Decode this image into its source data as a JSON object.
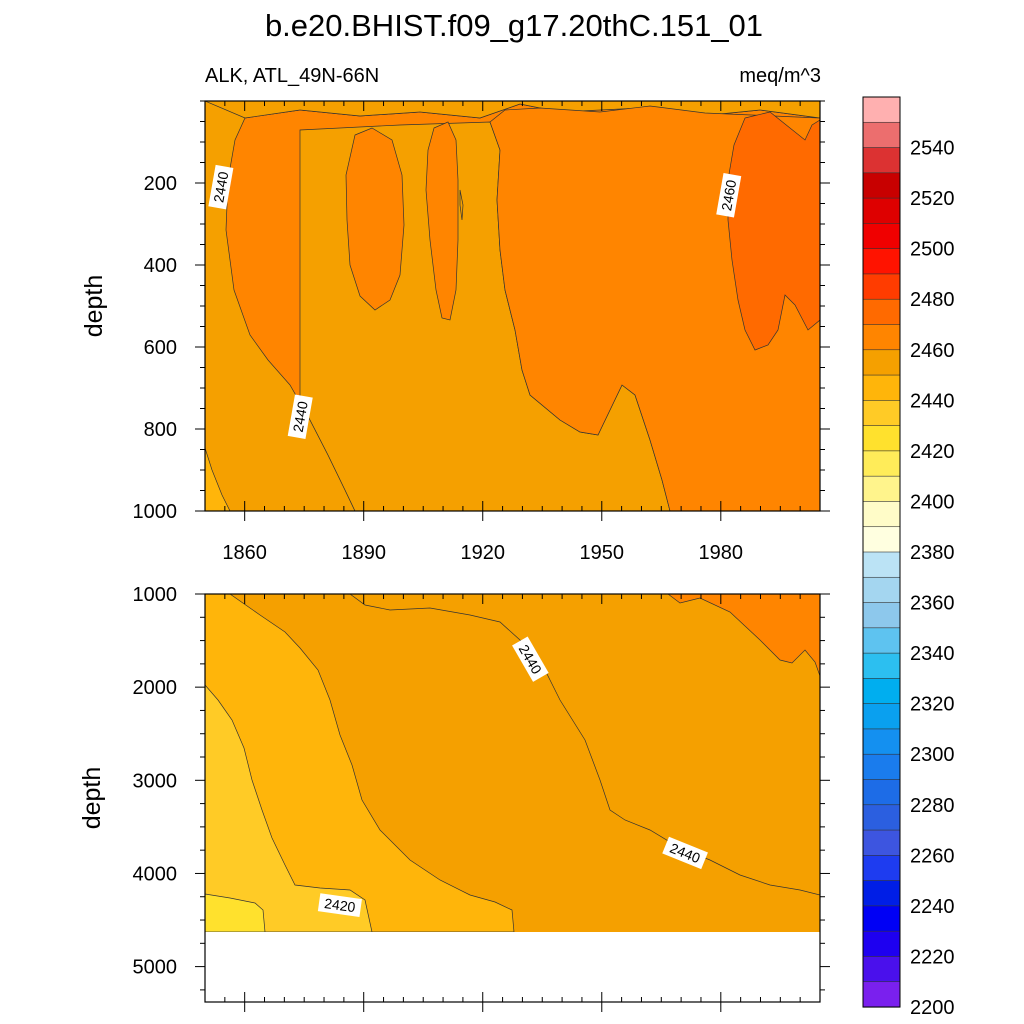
{
  "figure": {
    "title": "b.e20.BHIST.f09_g17.20thC.151_01",
    "subtitle_left": "ALK, ATL_49N-66N",
    "subtitle_right": "meq/m^3"
  },
  "chart_data": [
    {
      "type": "heatmap",
      "name": "upper-panel",
      "xlabel": "",
      "ylabel": "depth",
      "xlim": [
        1850,
        2005
      ],
      "ylim": [
        1000,
        0
      ],
      "xticks": [
        1860,
        1890,
        1920,
        1950,
        1980
      ],
      "xtick_labels": [
        "1860",
        "1890",
        "1920",
        "1950",
        "1980"
      ],
      "yticks": [
        200,
        400,
        600,
        800,
        1000
      ],
      "ytick_labels": [
        "200",
        "400",
        "600",
        "800",
        "1000"
      ],
      "contour_labels": [
        {
          "text": "2440",
          "x": 1854,
          "y": 210
        },
        {
          "text": "2440",
          "x": 1874,
          "y": 770
        },
        {
          "text": "2460",
          "x": 1982,
          "y": 230
        }
      ],
      "filled_regions_min_value": [
        {
          "level": 2440,
          "color": "#f5a000"
        },
        {
          "level": 2450,
          "color": "#ff8500"
        },
        {
          "level": 2460,
          "color": "#ff6a00"
        }
      ]
    },
    {
      "type": "heatmap",
      "name": "lower-panel",
      "xlabel": "",
      "ylabel": "depth",
      "xlim": [
        1850,
        2005
      ],
      "ylim": [
        5380,
        1000
      ],
      "xticks": [
        1860,
        1890,
        1920,
        1950,
        1980
      ],
      "yticks": [
        1000,
        2000,
        3000,
        4000,
        5000
      ],
      "ytick_labels": [
        "1000",
        "2000",
        "3000",
        "4000",
        "5000"
      ],
      "data_bottom_depth": 4620,
      "contour_labels": [
        {
          "text": "2440",
          "x": 1932,
          "y": 1700
        },
        {
          "text": "2440",
          "x": 1971,
          "y": 3780
        },
        {
          "text": "2420",
          "x": 1884,
          "y": 4340
        }
      ]
    }
  ],
  "colorbar": {
    "labels": [
      "2540",
      "2520",
      "2500",
      "2480",
      "2460",
      "2440",
      "2420",
      "2400",
      "2380",
      "2360",
      "2340",
      "2320",
      "2300",
      "2280",
      "2260",
      "2240",
      "2220",
      "2200"
    ],
    "colors": [
      "#ffb0b0",
      "#ec6e6e",
      "#dc3232",
      "#c80000",
      "#de0000",
      "#f00000",
      "#ff1300",
      "#ff3c00",
      "#ff6a00",
      "#ff8500",
      "#f5a000",
      "#ffb50a",
      "#ffcb26",
      "#ffe12d",
      "#ffec59",
      "#fff48c",
      "#fffcc8",
      "#ffffe0",
      "#bbe3f5",
      "#a4d6f0",
      "#8dc8ec",
      "#5ec3f0",
      "#2cbff0",
      "#00aeef",
      "#0aa0ef",
      "#1490f0",
      "#1a7ced",
      "#1d6ce7",
      "#2b5fe0",
      "#3d55e0",
      "#1e3cf0",
      "#001ee6",
      "#0000f5",
      "#1e00f0",
      "#4a10ec",
      "#7a20ee"
    ]
  },
  "colors": {
    "c2420": "#ffcb26",
    "c2430": "#ffb50a",
    "c2440": "#f5a000",
    "c2450": "#ff8500",
    "c2460": "#ff6a00",
    "c2410": "#ffe12d"
  }
}
